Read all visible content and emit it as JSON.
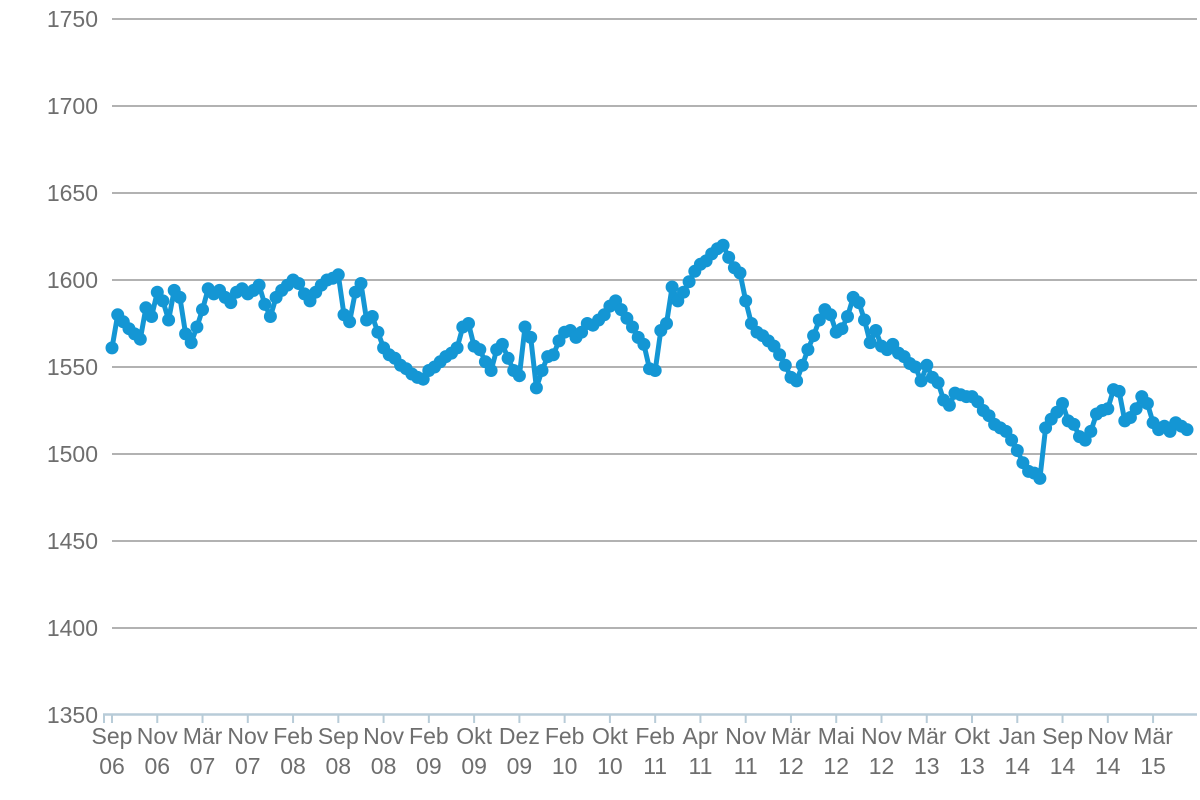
{
  "chart_data": {
    "type": "scatter",
    "title": "",
    "xlabel": "",
    "ylabel": "",
    "legend": "none",
    "grid": true,
    "ylim": [
      1350,
      1750
    ],
    "ytick_step": 50,
    "ytick_labels": [
      "1750",
      "1700",
      "1650",
      "1600",
      "1550",
      "1500",
      "1450",
      "1400",
      "1350"
    ],
    "x_tick_months": [
      "Sep",
      "Nov",
      "Mär",
      "Nov",
      "Feb",
      "Sep",
      "Nov",
      "Feb",
      "Okt",
      "Dez",
      "Feb",
      "Okt",
      "Feb",
      "Apr",
      "Nov",
      "Mär",
      "Mai",
      "Nov",
      "Mär",
      "Okt",
      "Jan",
      "Sep",
      "Nov",
      "Mär"
    ],
    "x_tick_years": [
      "06",
      "06",
      "07",
      "07",
      "08",
      "08",
      "08",
      "09",
      "09",
      "09",
      "10",
      "10",
      "11",
      "11",
      "11",
      "12",
      "12",
      "12",
      "13",
      "13",
      "14",
      "14",
      "14",
      "15"
    ],
    "points_per_label": 8,
    "values": [
      1561,
      1580,
      1576,
      1572,
      1569,
      1566,
      1584,
      1579,
      1593,
      1588,
      1577,
      1594,
      1590,
      1569,
      1564,
      1573,
      1583,
      1595,
      1592,
      1594,
      1590,
      1587,
      1593,
      1595,
      1592,
      1594,
      1597,
      1586,
      1579,
      1590,
      1594,
      1597,
      1600,
      1598,
      1592,
      1588,
      1593,
      1597,
      1600,
      1601,
      1603,
      1580,
      1576,
      1593,
      1598,
      1577,
      1579,
      1570,
      1561,
      1557,
      1555,
      1551,
      1549,
      1546,
      1544,
      1543,
      1548,
      1550,
      1553,
      1556,
      1558,
      1561,
      1573,
      1575,
      1562,
      1560,
      1553,
      1548,
      1560,
      1563,
      1555,
      1548,
      1545,
      1573,
      1567,
      1538,
      1548,
      1556,
      1557,
      1565,
      1570,
      1571,
      1567,
      1570,
      1575,
      1574,
      1577,
      1580,
      1585,
      1588,
      1583,
      1578,
      1573,
      1567,
      1563,
      1549,
      1548,
      1571,
      1575,
      1596,
      1588,
      1593,
      1599,
      1605,
      1609,
      1611,
      1615,
      1618,
      1620,
      1613,
      1607,
      1604,
      1588,
      1575,
      1570,
      1568,
      1565,
      1562,
      1557,
      1551,
      1544,
      1542,
      1551,
      1560,
      1568,
      1577,
      1583,
      1580,
      1570,
      1572,
      1579,
      1590,
      1587,
      1577,
      1564,
      1571,
      1562,
      1560,
      1563,
      1558,
      1556,
      1552,
      1550,
      1542,
      1551,
      1544,
      1541,
      1531,
      1528,
      1535,
      1534,
      1533,
      1533,
      1530,
      1525,
      1522,
      1517,
      1515,
      1513,
      1508,
      1502,
      1495,
      1490,
      1489,
      1486,
      1515,
      1520,
      1524,
      1529,
      1519,
      1517,
      1510,
      1508,
      1513,
      1523,
      1525,
      1526,
      1537,
      1536,
      1519,
      1521,
      1526,
      1533,
      1529,
      1518,
      1514,
      1516,
      1513,
      1518,
      1516,
      1514
    ],
    "colors": {
      "series": "#1496d4",
      "grid": "#b2b2b2",
      "axis": "#b8ccd8",
      "text": "#6e6e6e",
      "background": "#ffffff"
    },
    "marker_radius": 6.5,
    "line_width": 5
  }
}
